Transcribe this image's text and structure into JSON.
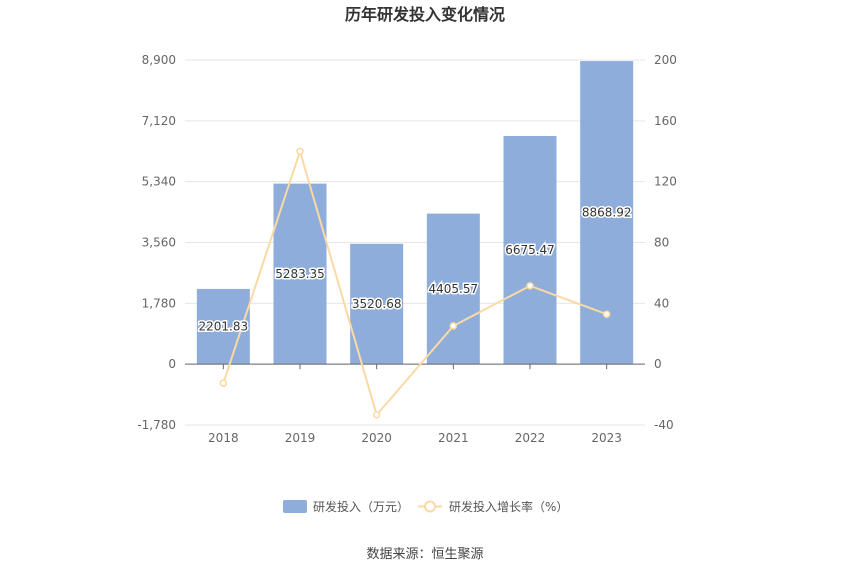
{
  "chart_data": {
    "type": "bar",
    "title": "历年研发投入变化情况",
    "categories": [
      "2018",
      "2019",
      "2020",
      "2021",
      "2022",
      "2023"
    ],
    "series": [
      {
        "name": "研发投入（万元）",
        "type": "bar",
        "axis": "left",
        "values": [
          2201.83,
          5283.35,
          3520.68,
          4405.57,
          6675.47,
          8868.92
        ],
        "labels": [
          "2201.83",
          "5283.35",
          "3520.68",
          "4405.57",
          "6675.47",
          "8868.92"
        ],
        "color": "#8eaddb"
      },
      {
        "name": "研发投入增长率（%）",
        "type": "line",
        "axis": "right",
        "values": [
          -12.5,
          139.95,
          -33.36,
          25.14,
          51.52,
          32.86
        ],
        "color": "#fbd9a4"
      }
    ],
    "y_left": {
      "min": -1780,
      "max": 8900,
      "ticks": [
        "-1,780",
        "0",
        "1,780",
        "3,560",
        "5,340",
        "7,120",
        "8,900"
      ]
    },
    "y_right": {
      "min": -40,
      "max": 200,
      "ticks": [
        "-40",
        "0",
        "40",
        "80",
        "120",
        "160",
        "200"
      ]
    },
    "grid": true,
    "legend_position": "bottom"
  },
  "source_text": "数据来源：恒生聚源"
}
